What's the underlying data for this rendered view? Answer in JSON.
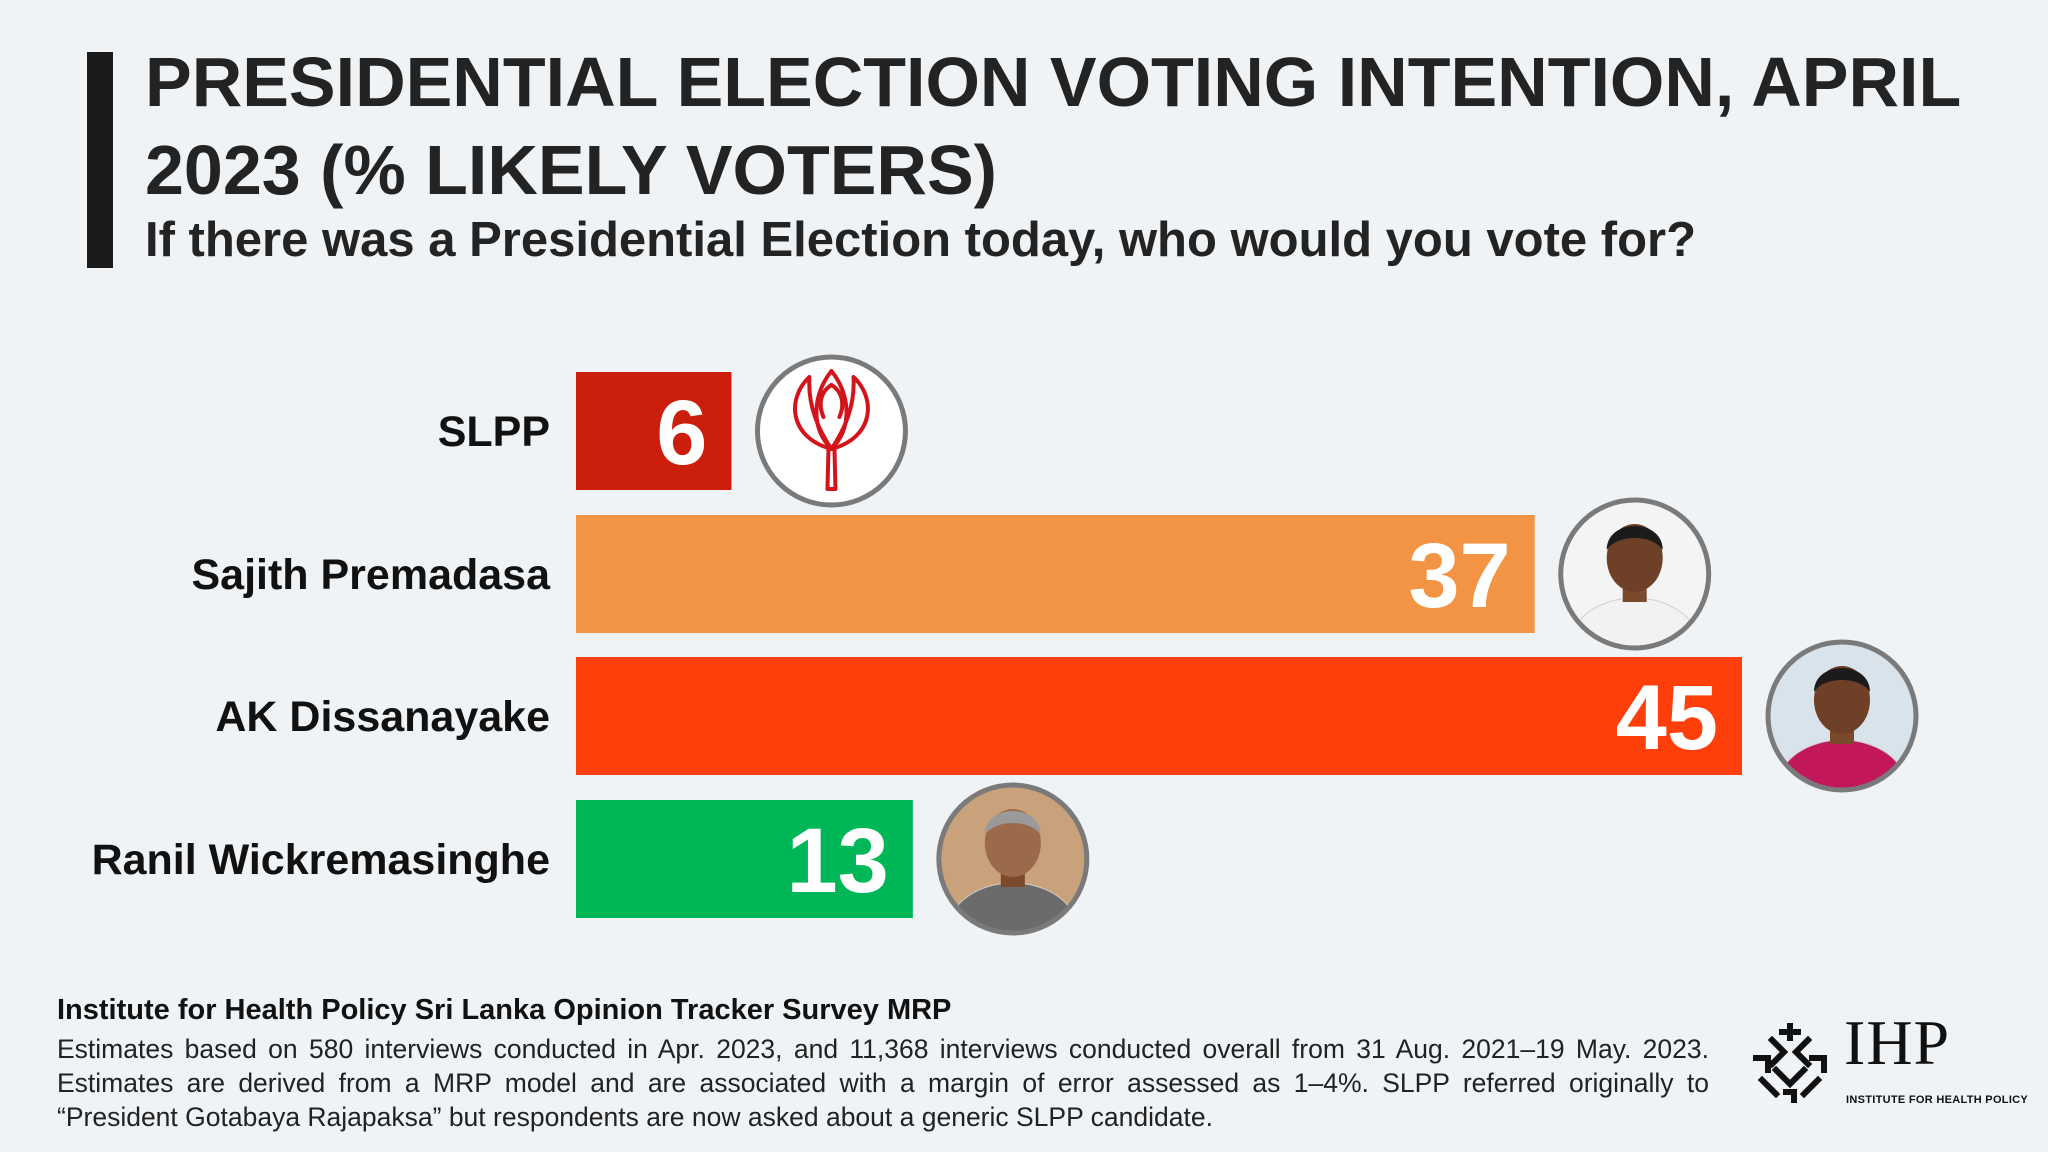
{
  "title": "PRESIDENTIAL ELECTION VOTING INTENTION, APRIL 2023 (% LIKELY VOTERS)",
  "subtitle": "If there was a Presidential Election today, who would you vote for?",
  "chart_data": {
    "type": "bar",
    "orientation": "horizontal",
    "title": "PRESIDENTIAL ELECTION VOTING INTENTION, APRIL 2023 (% LIKELY VOTERS)",
    "subtitle": "If there was a Presidential Election today, who would you vote for?",
    "categories": [
      "SLPP",
      "Sajith Premadasa",
      "AK Dissanayake",
      "Ranil Wickremasinghe"
    ],
    "values": [
      6,
      37,
      45,
      13
    ],
    "value_labels": [
      "6",
      "37",
      "45",
      "13"
    ],
    "colors": [
      "#cc1e0c",
      "#f29444",
      "#ff3f0a",
      "#00b757"
    ],
    "icons": [
      "slpp-lotus-logo",
      "candidate-photo",
      "candidate-photo",
      "candidate-photo"
    ],
    "xlim": [
      0,
      45
    ],
    "grid": false,
    "xlabel": "",
    "ylabel": ""
  },
  "source": {
    "title": "Institute for Health Policy Sri Lanka Opinion Tracker Survey MRP",
    "text": "Estimates based on 580 interviews conducted in Apr. 2023, and 11,368 interviews conducted overall from 31 Aug. 2021–19 May. 2023. Estimates are derived from a MRP model and are associated with a margin of error assessed as 1–4%. SLPP referred originally to “President Gotabaya Rajapaksa” but respondents are now asked about a generic SLPP candidate."
  },
  "logo": {
    "abbr": "IHP",
    "name": "INSTITUTE FOR HEALTH POLICY"
  }
}
